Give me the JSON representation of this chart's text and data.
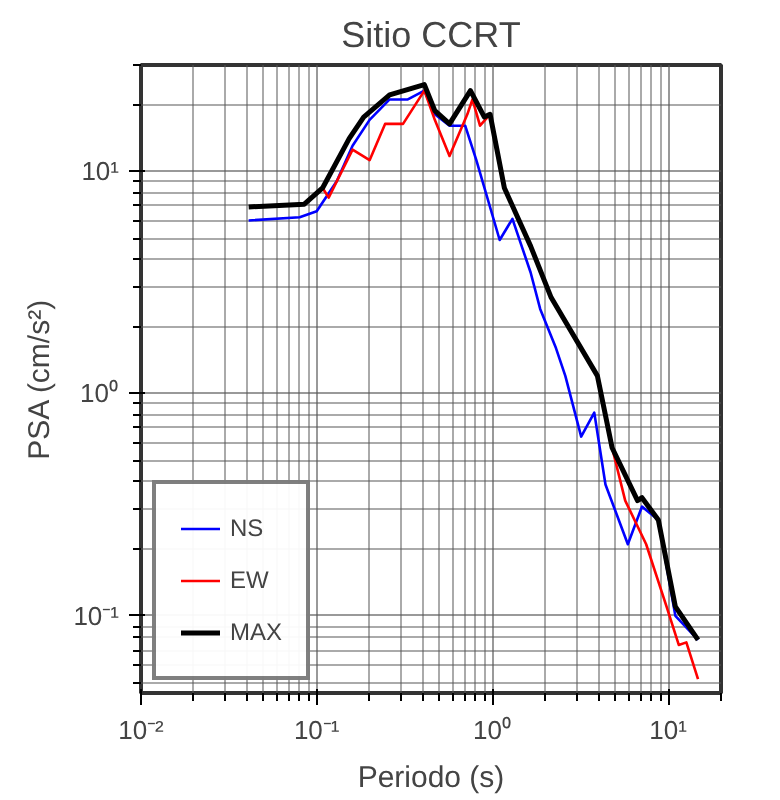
{
  "chart_data": {
    "type": "line",
    "title": "Sitio CCRT",
    "xlabel": "Periodo (s)",
    "ylabel": "PSA (cm/s²)",
    "log": "xy",
    "grid": true,
    "legend": "bottom left",
    "xlim": [
      0.01,
      20
    ],
    "ylim": [
      0.045,
      30
    ],
    "xticks": [
      {
        "value": 0.01,
        "label": "10⁻²"
      },
      {
        "value": 0.1,
        "label": "10⁻¹"
      },
      {
        "value": 1,
        "label": "10⁰"
      },
      {
        "value": 10,
        "label": "10¹"
      }
    ],
    "yticks": [
      {
        "value": 0.1,
        "label": "10⁻¹"
      },
      {
        "value": 1,
        "label": "10⁰"
      },
      {
        "value": 10,
        "label": "10¹"
      }
    ],
    "series": [
      {
        "name": "NS",
        "color": "#0000ff",
        "x": [
          0.041,
          0.08,
          0.1,
          0.13,
          0.16,
          0.2,
          0.26,
          0.33,
          0.41,
          0.47,
          0.57,
          0.7,
          0.81,
          1.1,
          1.3,
          1.65,
          1.87,
          2.3,
          2.6,
          3.2,
          3.8,
          4.4,
          5.9,
          7.1,
          8.8,
          11,
          14.8
        ],
        "values": [
          6.0,
          6.2,
          6.6,
          9,
          13,
          17,
          21,
          21,
          23,
          18,
          16,
          16,
          11.2,
          4.9,
          6.1,
          3.5,
          2.4,
          1.6,
          1.2,
          0.64,
          0.82,
          0.39,
          0.21,
          0.31,
          0.27,
          0.1,
          0.078
        ]
      },
      {
        "name": "EW",
        "color": "#ff0000",
        "x": [
          0.108,
          0.117,
          0.16,
          0.2,
          0.245,
          0.31,
          0.41,
          0.47,
          0.57,
          0.72,
          0.77,
          0.85,
          0.97,
          1.17,
          1.65,
          2.16,
          3.96,
          4.8,
          5.7,
          7.5,
          9.8,
          11.5,
          12.7,
          14.8
        ],
        "values": [
          8.4,
          7.6,
          12.5,
          11.2,
          16.3,
          16.3,
          23,
          17,
          11.7,
          18,
          21,
          16,
          18,
          null,
          null,
          null,
          null,
          0.57,
          0.33,
          0.21,
          0.11,
          0.074,
          0.076,
          0.052
        ]
      },
      {
        "name": "MAX",
        "color": "#000000",
        "x": [
          0.041,
          0.085,
          0.108,
          0.153,
          0.185,
          0.26,
          0.41,
          0.47,
          0.57,
          0.75,
          0.9,
          0.97,
          1.17,
          1.65,
          2.16,
          3.96,
          4.8,
          6.7,
          7.1,
          8.8,
          11,
          14.8
        ],
        "values": [
          6.9,
          7.1,
          8.4,
          14,
          17.5,
          22,
          24.5,
          18.7,
          16.3,
          23,
          17.5,
          18,
          8.4,
          4.6,
          2.7,
          1.2,
          0.57,
          0.33,
          0.34,
          0.27,
          0.11,
          0.078
        ]
      }
    ]
  }
}
